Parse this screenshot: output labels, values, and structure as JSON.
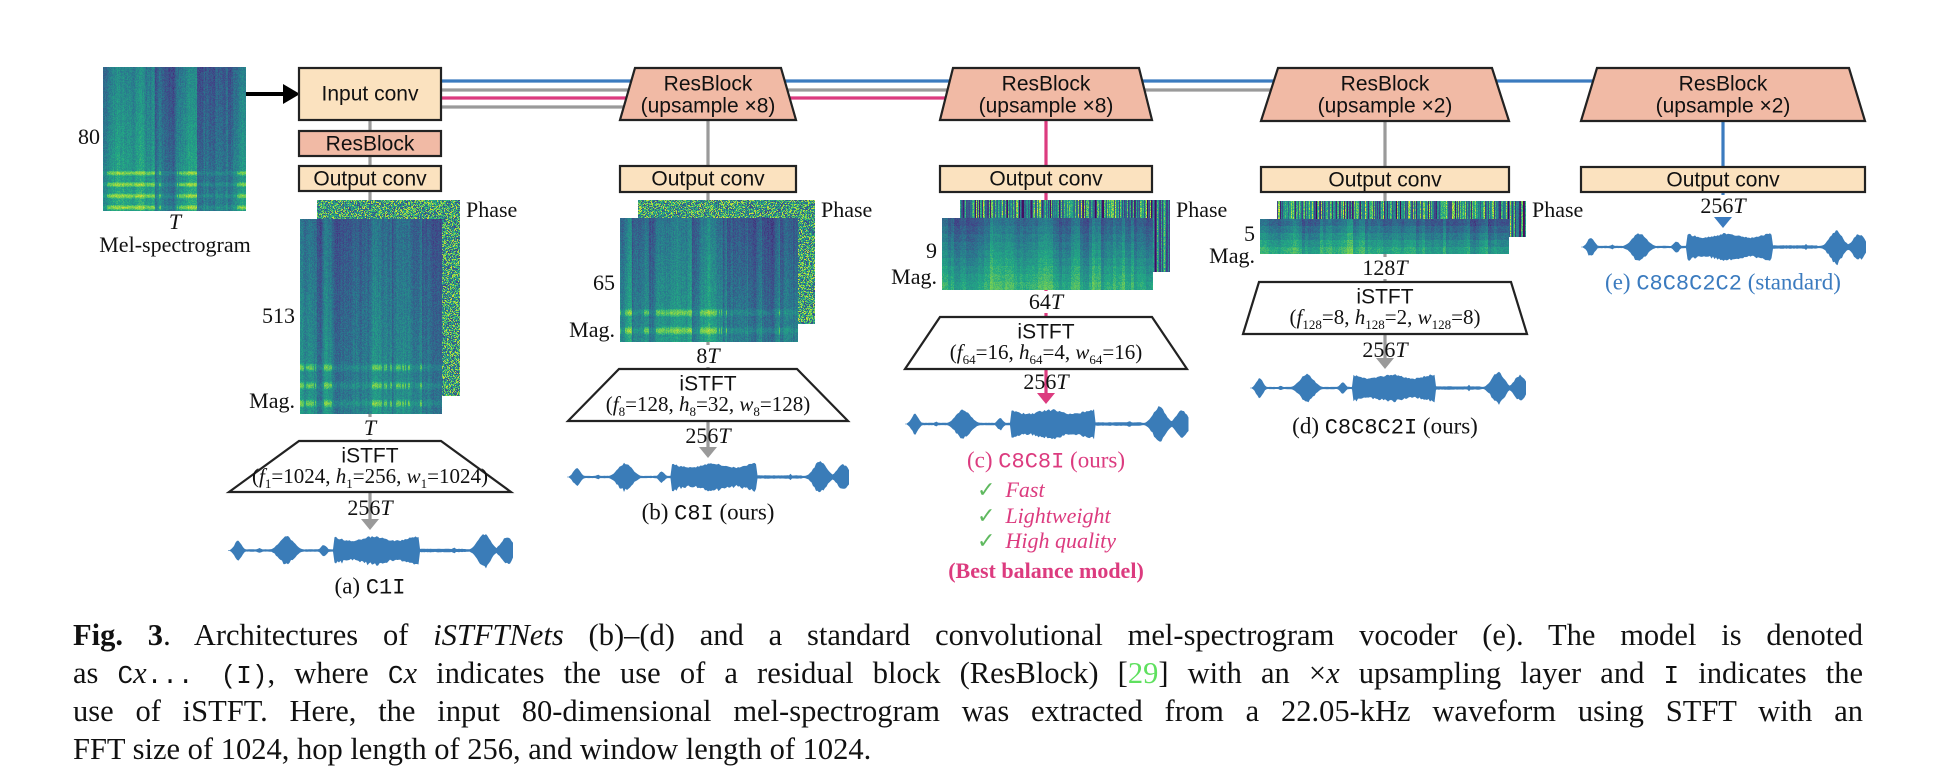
{
  "colors": {
    "box_fill": "#fbe2bf",
    "resblock_fill": "#f1baa5",
    "blue": "#3b7bbf",
    "pink": "#dc3b7f",
    "gray": "#9a9a9a",
    "green_check": "#5fb95f",
    "ref_green": "#5fe05f",
    "waveform": "#3a7cb8"
  },
  "mel": {
    "dim": "80",
    "time": "T",
    "label": "Mel-spectrogram"
  },
  "input_conv": "Input conv",
  "columns": [
    {
      "id": "a",
      "resblock": [
        "ResBlock"
      ],
      "output_conv": "Output conv",
      "phase_label": "Phase",
      "mag_label": "Mag.",
      "freq_bins": "513",
      "frames": {
        "n": "",
        "v": "T"
      },
      "istft": {
        "label": "iSTFT",
        "params": [
          {
            "t": "(",
            "s": ""
          },
          {
            "t": "f",
            "s": "i"
          },
          {
            "t": "1",
            "s": "sub"
          },
          {
            "t": "=1024, ",
            "s": ""
          },
          {
            "t": "h",
            "s": "i"
          },
          {
            "t": "1",
            "s": "sub"
          },
          {
            "t": "=256, ",
            "s": ""
          },
          {
            "t": "w",
            "s": "i"
          },
          {
            "t": "1",
            "s": "sub"
          },
          {
            "t": "=1024)",
            "s": ""
          }
        ]
      },
      "output_len": {
        "n": "256",
        "v": "T"
      },
      "caption": {
        "tag": "(a) ",
        "model": "C1I",
        "note": ""
      },
      "line_color": "gray"
    },
    {
      "id": "b",
      "resblock": [
        "ResBlock",
        "(upsample ×8)"
      ],
      "output_conv": "Output conv",
      "phase_label": "Phase",
      "mag_label": "Mag.",
      "freq_bins": "65",
      "frames": {
        "n": "8",
        "v": "T"
      },
      "istft": {
        "label": "iSTFT",
        "params": [
          {
            "t": "(",
            "s": ""
          },
          {
            "t": "f",
            "s": "i"
          },
          {
            "t": "8",
            "s": "sub"
          },
          {
            "t": "=128, ",
            "s": ""
          },
          {
            "t": "h",
            "s": "i"
          },
          {
            "t": "8",
            "s": "sub"
          },
          {
            "t": "=32, ",
            "s": ""
          },
          {
            "t": "w",
            "s": "i"
          },
          {
            "t": "8",
            "s": "sub"
          },
          {
            "t": "=128)",
            "s": ""
          }
        ]
      },
      "output_len": {
        "n": "256",
        "v": "T"
      },
      "caption": {
        "tag": "(b) ",
        "model": "C8I",
        "note": " (ours)"
      },
      "line_color": "gray"
    },
    {
      "id": "c",
      "resblock": [
        "ResBlock",
        "(upsample ×8)"
      ],
      "output_conv": "Output conv",
      "phase_label": "Phase",
      "mag_label": "Mag.",
      "freq_bins": "9",
      "frames": {
        "n": "64",
        "v": "T"
      },
      "istft": {
        "label": "iSTFT",
        "params": [
          {
            "t": "(",
            "s": ""
          },
          {
            "t": "f",
            "s": "i"
          },
          {
            "t": "64",
            "s": "sub"
          },
          {
            "t": "=16, ",
            "s": ""
          },
          {
            "t": "h",
            "s": "i"
          },
          {
            "t": "64",
            "s": "sub"
          },
          {
            "t": "=4, ",
            "s": ""
          },
          {
            "t": "w",
            "s": "i"
          },
          {
            "t": "64",
            "s": "sub"
          },
          {
            "t": "=16)",
            "s": ""
          }
        ]
      },
      "output_len": {
        "n": "256",
        "v": "T"
      },
      "caption": {
        "tag": "(c) ",
        "model": "C8C8I",
        "note": " (ours)"
      },
      "line_color": "pink",
      "highlights": {
        "check": "✓",
        "items": [
          "Fast",
          "Lightweight",
          "High quality"
        ],
        "summary": "(Best balance model)"
      }
    },
    {
      "id": "d",
      "resblock": [
        "ResBlock",
        "(upsample ×2)"
      ],
      "output_conv": "Output conv",
      "phase_label": "Phase",
      "mag_label": "Mag.",
      "freq_bins": "5",
      "frames": {
        "n": "128",
        "v": "T"
      },
      "istft": {
        "label": "iSTFT",
        "params": [
          {
            "t": "(",
            "s": ""
          },
          {
            "t": "f",
            "s": "i"
          },
          {
            "t": "128",
            "s": "sub"
          },
          {
            "t": "=8, ",
            "s": ""
          },
          {
            "t": "h",
            "s": "i"
          },
          {
            "t": "128",
            "s": "sub"
          },
          {
            "t": "=2, ",
            "s": ""
          },
          {
            "t": "w",
            "s": "i"
          },
          {
            "t": "128",
            "s": "sub"
          },
          {
            "t": "=8)",
            "s": ""
          }
        ]
      },
      "output_len": {
        "n": "256",
        "v": "T"
      },
      "caption": {
        "tag": "(d) ",
        "model": "C8C8C2I",
        "note": " (ours)"
      },
      "line_color": "gray"
    },
    {
      "id": "e",
      "resblock": [
        "ResBlock",
        "(upsample ×2)"
      ],
      "output_conv": "Output conv",
      "output_len": {
        "n": "256",
        "v": "T"
      },
      "caption": {
        "tag": "(e) ",
        "model": "C8C8C2C2",
        "note": " (standard)"
      },
      "line_color": "blue"
    }
  ],
  "caption": {
    "lines": [
      [
        {
          "t": "Fig. 3",
          "s": "b"
        },
        {
          "t": ".  Architectures of ",
          "s": ""
        },
        {
          "t": "iSTFTNets",
          "s": "i"
        },
        {
          "t": " (b)–(d) and a standard convolutional mel-spectrogram vocoder (e).  The model is denoted",
          "s": ""
        }
      ],
      [
        {
          "t": "as ",
          "s": ""
        },
        {
          "t": "C",
          "s": "m"
        },
        {
          "t": "x",
          "s": "i"
        },
        {
          "t": "... (I)",
          "s": "m"
        },
        {
          "t": ", where ",
          "s": ""
        },
        {
          "t": "C",
          "s": "m"
        },
        {
          "t": "x",
          "s": "i"
        },
        {
          "t": " indicates the use of a residual block (ResBlock) [",
          "s": ""
        },
        {
          "t": "29",
          "s": "ref"
        },
        {
          "t": "] with an ×",
          "s": ""
        },
        {
          "t": "x",
          "s": "i"
        },
        {
          "t": " upsampling layer and ",
          "s": ""
        },
        {
          "t": "I",
          "s": "m"
        },
        {
          "t": " indicates the",
          "s": ""
        }
      ],
      [
        {
          "t": "use of iSTFT. Here, the input 80-dimensional mel-spectrogram was extracted from a 22.05-kHz waveform using STFT with an",
          "s": ""
        }
      ],
      [
        {
          "t": "FFT size of 1024, hop length of 256, and window length of 1024.",
          "s": ""
        }
      ]
    ]
  }
}
